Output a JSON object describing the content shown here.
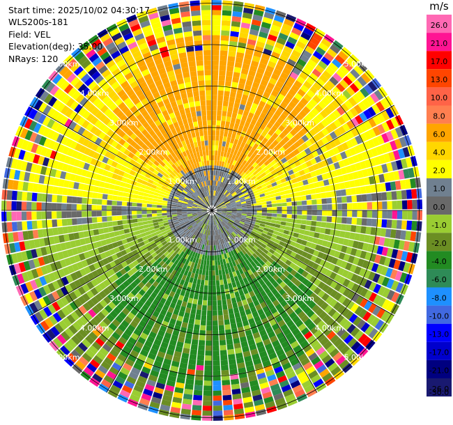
{
  "header": {
    "start_time": "Start time: 2025/10/02 04:30:17",
    "instrument": "WLS200s-181",
    "field": "Field: VEL",
    "elevation": "Elevation(deg): 35.00",
    "nrays": "NRays: 120"
  },
  "colorbar": {
    "unit": "m/s",
    "bins": [
      {
        "label": "26.0",
        "color": "#ff69b4"
      },
      {
        "label": "21.0",
        "color": "#ff1493"
      },
      {
        "label": "17.0",
        "color": "#ff0000"
      },
      {
        "label": "13.0",
        "color": "#ff4500"
      },
      {
        "label": "10.0",
        "color": "#ff6347"
      },
      {
        "label": "8.0",
        "color": "#ff7f50"
      },
      {
        "label": "6.0",
        "color": "#ffa500"
      },
      {
        "label": "4.0",
        "color": "#ffd700"
      },
      {
        "label": "2.0",
        "color": "#ffff00"
      },
      {
        "label": "1.0",
        "color": "#708090"
      },
      {
        "label": "0.0",
        "color": "#696969"
      },
      {
        "label": "-1.0",
        "color": "#9acd32"
      },
      {
        "label": "-2.0",
        "color": "#6b8e23"
      },
      {
        "label": "-4.0",
        "color": "#228b22"
      },
      {
        "label": "-6.0",
        "color": "#2e8b57"
      },
      {
        "label": "-8.0",
        "color": "#1e90ff"
      },
      {
        "label": "-10.0",
        "color": "#4169e1"
      },
      {
        "label": "-13.0",
        "color": "#0000ff"
      },
      {
        "label": "-17.0",
        "color": "#0000cd"
      },
      {
        "label": "-21.0",
        "color": "#000080"
      },
      {
        "label": "-26.0",
        "color": "#191970"
      },
      {
        "label": "-30.0",
        "color": "#ffffff"
      }
    ]
  },
  "chart_data": {
    "type": "heatmap",
    "projection": "ppi-polar",
    "field": "VEL",
    "units": "m/s",
    "nrays": 120,
    "range_max_km": 5.0,
    "ring_labels": [
      "1.00km",
      "2.00km",
      "3.00km",
      "4.00km",
      "5.00km"
    ],
    "velocity_pattern": {
      "north_sector": "positive, +2 to +6 m/s (yellow/orange)",
      "south_sector": "negative, -1 to -6 m/s (green)",
      "near_center": "0 to 1 m/s (gray)",
      "outer_ranges": "noisy / folded values"
    }
  }
}
